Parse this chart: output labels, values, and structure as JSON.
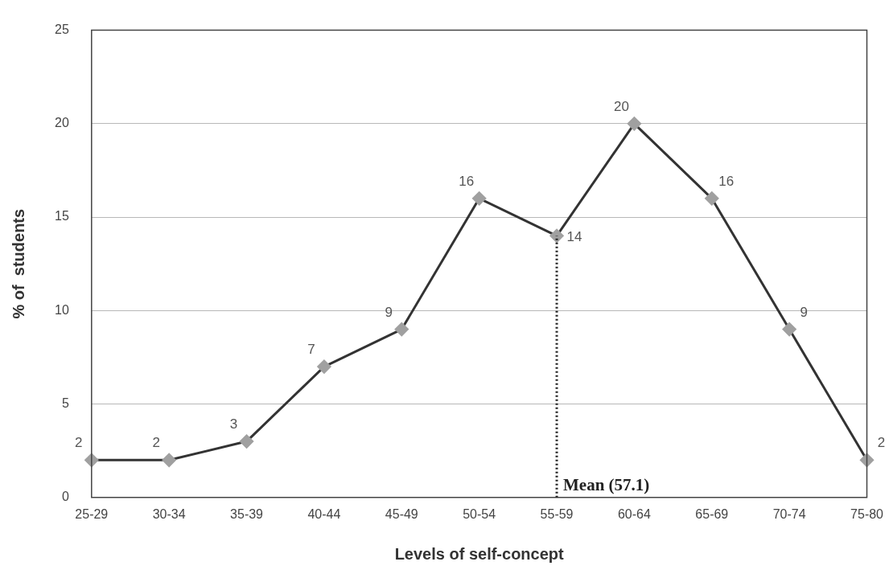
{
  "chart_data": {
    "type": "line",
    "xlabel": "Levels of self-concept",
    "ylabel": "% of  students",
    "categories": [
      "25-29",
      "30-34",
      "35-39",
      "40-44",
      "45-49",
      "50-54",
      "55-59",
      "60-64",
      "65-69",
      "70-74",
      "75-80"
    ],
    "series": [
      {
        "color": "#333333",
        "values": [
          2,
          2,
          3,
          7,
          9,
          16,
          14,
          20,
          16,
          9,
          2
        ]
      }
    ],
    "ylim": [
      0,
      25
    ],
    "yticks": [
      0,
      5,
      10,
      15,
      20,
      25
    ],
    "grid": "y",
    "legend": false,
    "marker": "diamond",
    "line_style": "solid",
    "data_labels": true,
    "ref_lines": [
      {
        "axis": "x",
        "value": "55-59",
        "label": "Mean (57.1)",
        "color": "#222222",
        "line_style": "dotted"
      }
    ]
  }
}
